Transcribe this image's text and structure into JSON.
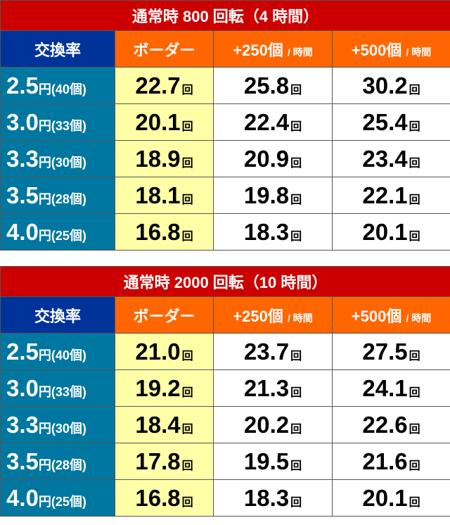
{
  "colors": {
    "title": "#cc0000",
    "rate_header": "#003399",
    "col_header": "#ff6600",
    "rate_cell": "#0077a0",
    "border_cell": "#ffffa8"
  },
  "tables": [
    {
      "title": "通常時 800 回転（4 時間）",
      "headers": {
        "rate": "交換率",
        "border": "ボーダー",
        "plus250": "+250個",
        "plus500": "+500個",
        "per_hour": "/ 時間"
      },
      "unit": "回",
      "yen": "円",
      "rows": [
        {
          "rate": "2.5",
          "balls": "(40個)",
          "border": "22.7",
          "plus250": "25.8",
          "plus500": "30.2"
        },
        {
          "rate": "3.0",
          "balls": "(33個)",
          "border": "20.1",
          "plus250": "22.4",
          "plus500": "25.4"
        },
        {
          "rate": "3.3",
          "balls": "(30個)",
          "border": "18.9",
          "plus250": "20.9",
          "plus500": "23.4"
        },
        {
          "rate": "3.5",
          "balls": "(28個)",
          "border": "18.1",
          "plus250": "19.8",
          "plus500": "22.1"
        },
        {
          "rate": "4.0",
          "balls": "(25個)",
          "border": "16.8",
          "plus250": "18.3",
          "plus500": "20.1"
        }
      ]
    },
    {
      "title": "通常時 2000 回転（10 時間）",
      "headers": {
        "rate": "交換率",
        "border": "ボーダー",
        "plus250": "+250個",
        "plus500": "+500個",
        "per_hour": "/ 時間"
      },
      "unit": "回",
      "yen": "円",
      "rows": [
        {
          "rate": "2.5",
          "balls": "(40個)",
          "border": "21.0",
          "plus250": "23.7",
          "plus500": "27.5"
        },
        {
          "rate": "3.0",
          "balls": "(33個)",
          "border": "19.2",
          "plus250": "21.3",
          "plus500": "24.1"
        },
        {
          "rate": "3.3",
          "balls": "(30個)",
          "border": "18.4",
          "plus250": "20.2",
          "plus500": "22.6"
        },
        {
          "rate": "3.5",
          "balls": "(28個)",
          "border": "17.8",
          "plus250": "19.5",
          "plus500": "21.6"
        },
        {
          "rate": "4.0",
          "balls": "(25個)",
          "border": "16.8",
          "plus250": "18.3",
          "plus500": "20.1"
        }
      ]
    }
  ]
}
